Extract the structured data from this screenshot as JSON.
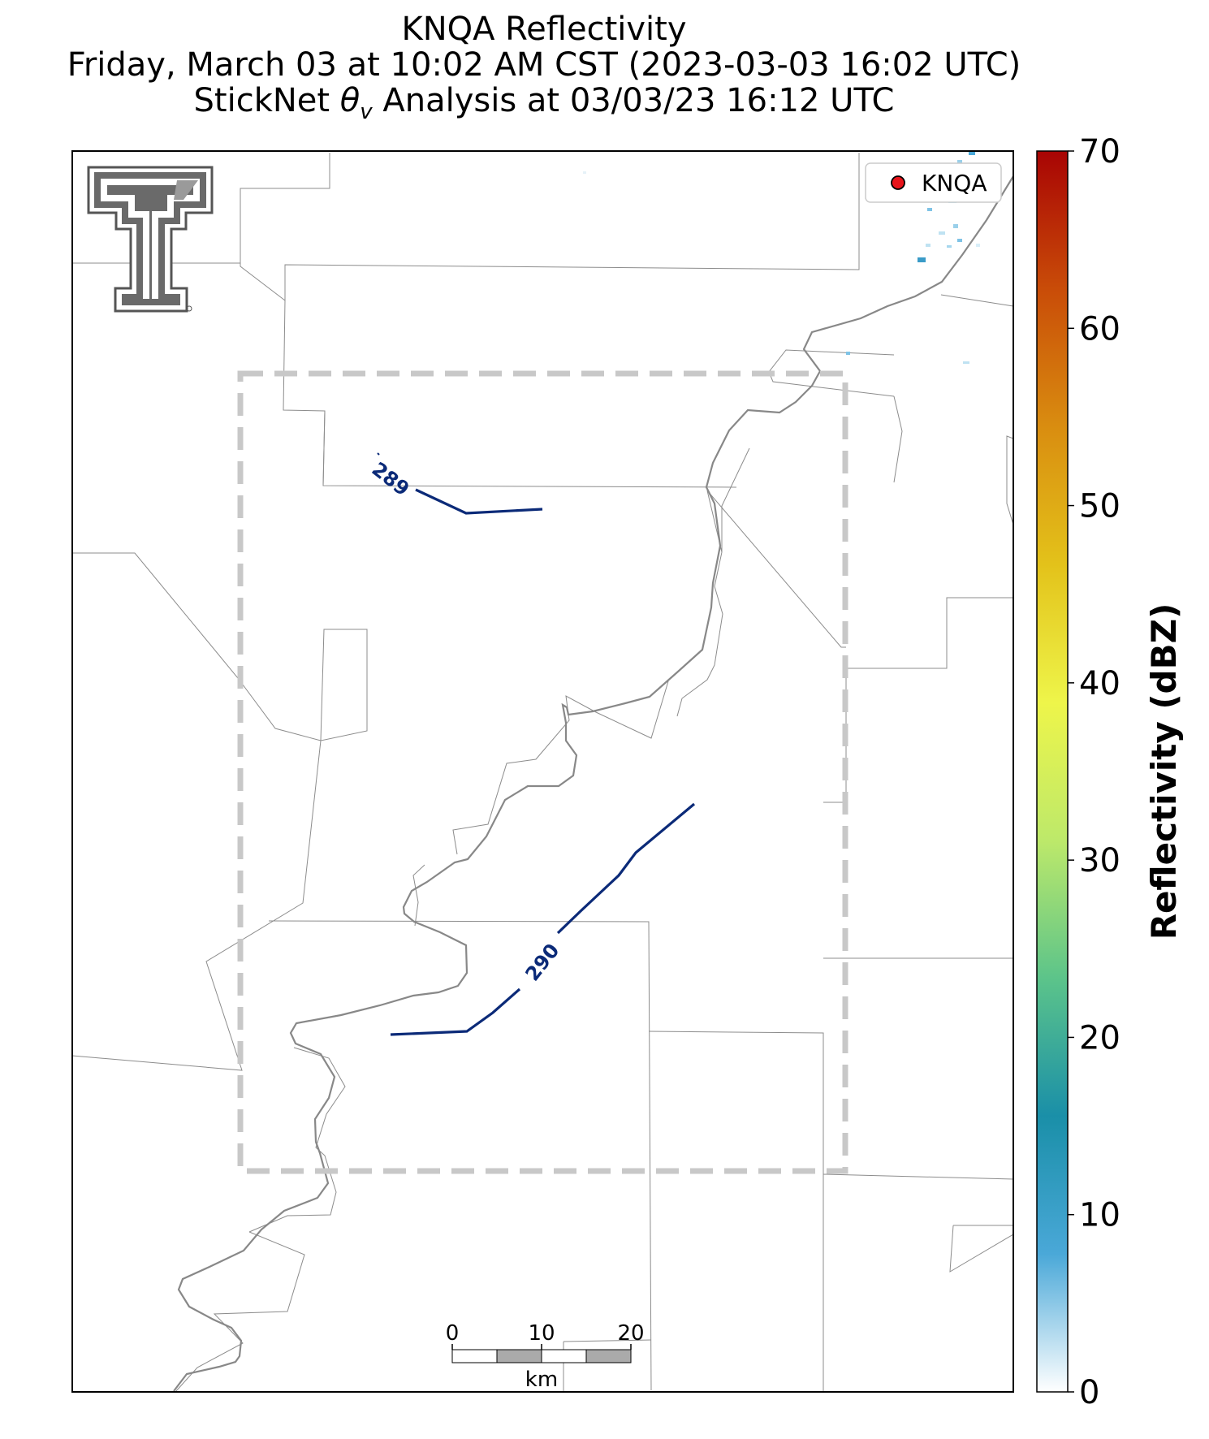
{
  "titles": {
    "line1": "KNQA Reflectivity",
    "line2": "Friday, March 03 at 10:02 AM CST (2023-03-03 16:02 UTC)",
    "line3_prefix": "StickNet ",
    "line3_symbol": "θ",
    "line3_sub": "v",
    "line3_suffix": " Analysis at 03/03/23 16:12 UTC"
  },
  "legend": {
    "label": "KNQA",
    "marker_color": "#e8141b"
  },
  "contours": [
    {
      "label": "289",
      "color": "#0b2a78"
    },
    {
      "label": "290",
      "color": "#0b2a78"
    }
  ],
  "scale_bar": {
    "ticks": [
      "0",
      "10",
      "20"
    ],
    "unit": "km"
  },
  "colorbar": {
    "label": "Reflectivity (dBZ)",
    "min": 0,
    "max": 70,
    "ticks": [
      0,
      10,
      20,
      30,
      40,
      50,
      60,
      70
    ],
    "colors": [
      "#ffffff",
      "#4aa8d8",
      "#1a8fa8",
      "#5cc48a",
      "#bde96a",
      "#eef54a",
      "#e3c21a",
      "#d98d10",
      "#c94c08",
      "#a80404"
    ]
  },
  "logo": {
    "name": "Texas Tech Double T"
  }
}
